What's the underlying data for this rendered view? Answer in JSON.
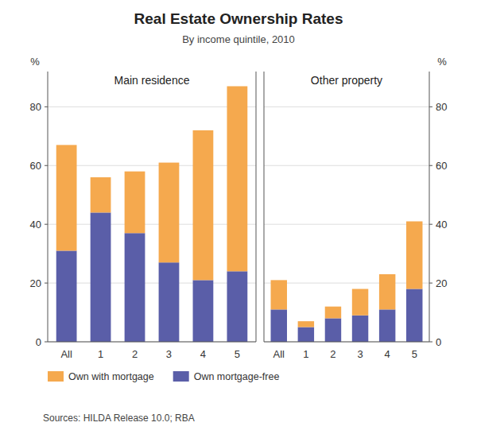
{
  "title": "Real Estate Ownership Rates",
  "subtitle": "By income quintile, 2010",
  "source": "Sources: HILDA Release 10.0; RBA",
  "chart_data": [
    {
      "type": "bar",
      "stacked": true,
      "title": "Main residence",
      "ylabel": "%",
      "categories": [
        "All",
        "1",
        "2",
        "3",
        "4",
        "5"
      ],
      "series": [
        {
          "name": "Own mortgage-free",
          "color": "#5a5ea8",
          "values": [
            31,
            44,
            37,
            27,
            21,
            24
          ]
        },
        {
          "name": "Own with mortgage",
          "color": "#f5a94e",
          "values": [
            36,
            12,
            21,
            34,
            51,
            63
          ]
        }
      ],
      "ylim": [
        0,
        92
      ],
      "yticks": [
        0,
        20,
        40,
        60,
        80
      ],
      "grid": true,
      "legend": "bottom"
    },
    {
      "type": "bar",
      "stacked": true,
      "title": "Other property",
      "ylabel": "%",
      "categories": [
        "All",
        "1",
        "2",
        "3",
        "4",
        "5"
      ],
      "series": [
        {
          "name": "Own mortgage-free",
          "color": "#5a5ea8",
          "values": [
            11,
            5,
            8,
            9,
            11,
            18
          ]
        },
        {
          "name": "Own with mortgage",
          "color": "#f5a94e",
          "values": [
            10,
            2,
            4,
            9,
            12,
            23
          ]
        }
      ],
      "ylim": [
        0,
        92
      ],
      "yticks": [
        0,
        20,
        40,
        60,
        80
      ],
      "grid": true,
      "legend": "bottom"
    }
  ]
}
